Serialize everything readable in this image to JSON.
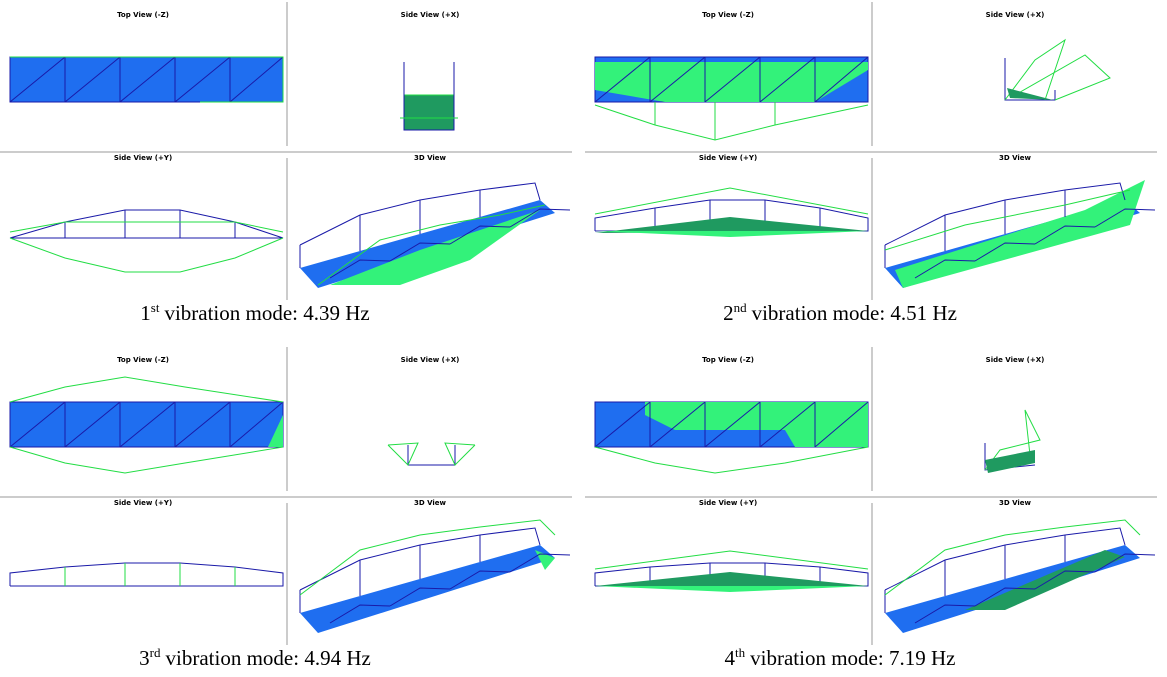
{
  "panels": [
    {
      "views": [
        "Top View (-Z)",
        "Side View (+X)",
        "Side View (+Y)",
        "3D View"
      ],
      "caption": {
        "ordinal": "1",
        "suffix": "st",
        "rest": "vibration mode: 4.39 Hz"
      }
    },
    {
      "views": [
        "Top View (-Z)",
        "Side View (+X)",
        "Side View (+Y)",
        "3D View"
      ],
      "caption": {
        "ordinal": "2",
        "suffix": "nd",
        "rest": "vibration mode: 4.51 Hz"
      }
    },
    {
      "views": [
        "Top View (-Z)",
        "Side View (+X)",
        "Side View (+Y)",
        "3D View"
      ],
      "caption": {
        "ordinal": "3",
        "suffix": "rd",
        "rest": "vibration mode: 4.94 Hz"
      }
    },
    {
      "views": [
        "Top View (-Z)",
        "Side View (+X)",
        "Side View (+Y)",
        "3D View"
      ],
      "caption": {
        "ordinal": "4",
        "suffix": "th",
        "rest": "vibration mode: 7.19 Hz"
      }
    }
  ]
}
